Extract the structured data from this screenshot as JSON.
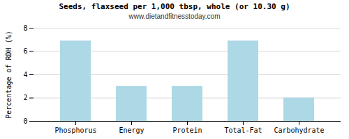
{
  "chart_data": {
    "type": "bar",
    "title": "Seeds, flaxseed per 1,000 tbsp, whole (or 10.30 g)",
    "subtitle": "www.dietandfitnesstoday.com",
    "categories": [
      "Phosphorus",
      "Energy",
      "Protein",
      "Total-Fat",
      "Carbohydrate"
    ],
    "values": [
      6.9,
      3.0,
      3.0,
      6.9,
      2.0
    ],
    "color": "#add8e6",
    "ylabel": "Percentage of RDH (%)",
    "ylim": [
      0,
      8
    ],
    "yticks": [
      0,
      2,
      4,
      6,
      8
    ],
    "grid": true
  }
}
